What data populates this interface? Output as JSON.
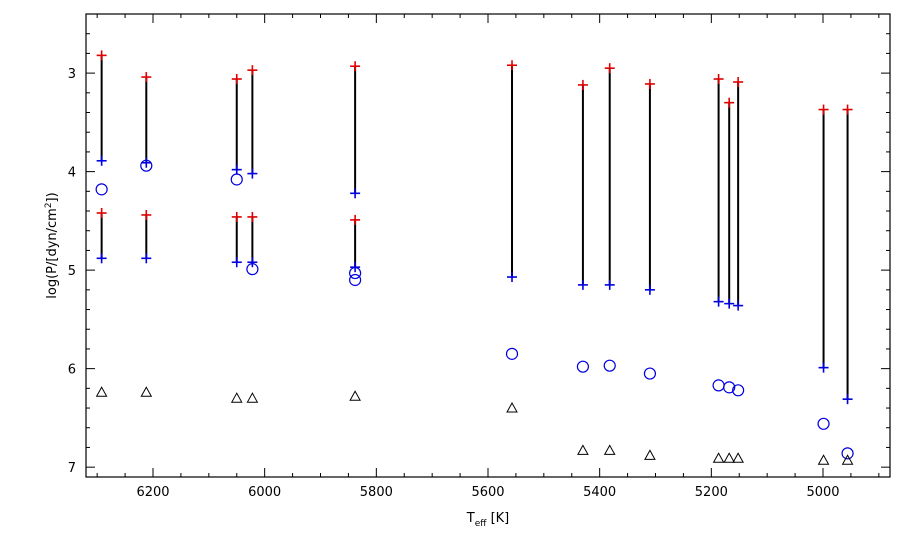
{
  "chart_data": {
    "type": "scatter",
    "xlabel_main": "T",
    "xlabel_sub": "eff",
    "xlabel_unit": " [K]",
    "ylabel_main": "log(P/[dyn/cm",
    "ylabel_sup": "2",
    "ylabel_end": "])",
    "xlim": [
      6320,
      4880
    ],
    "ylim": [
      2.4,
      7.1
    ],
    "y_inverted": true,
    "x_ticks": [
      6200,
      6000,
      5800,
      5600,
      5400,
      5200,
      5000
    ],
    "y_ticks": [
      3,
      4,
      5,
      6,
      7
    ],
    "x_minor_step": 50,
    "y_minor_step": 0.2,
    "grid": false,
    "colors": {
      "top_marker": "#e00000",
      "bottom_marker": "#0000e0",
      "circle": "#0000e0",
      "triangle": "#000000",
      "line": "#000000"
    },
    "segments": [
      {
        "x": 6292,
        "top": 2.82,
        "bottom": 3.89
      },
      {
        "x": 6292,
        "top": 4.42,
        "bottom": 4.88
      },
      {
        "x": 6212,
        "top": 3.04,
        "bottom": 3.91
      },
      {
        "x": 6212,
        "top": 4.44,
        "bottom": 4.88
      },
      {
        "x": 6050,
        "top": 3.06,
        "bottom": 3.98
      },
      {
        "x": 6050,
        "top": 4.46,
        "bottom": 4.92
      },
      {
        "x": 6022,
        "top": 2.97,
        "bottom": 4.02
      },
      {
        "x": 6022,
        "top": 4.46,
        "bottom": 4.92
      },
      {
        "x": 5838,
        "top": 2.93,
        "bottom": 4.22
      },
      {
        "x": 5838,
        "top": 4.49,
        "bottom": 4.97
      },
      {
        "x": 5557,
        "top": 2.92,
        "bottom": 5.07
      },
      {
        "x": 5430,
        "top": 3.12,
        "bottom": 5.15
      },
      {
        "x": 5382,
        "top": 2.95,
        "bottom": 5.15
      },
      {
        "x": 5310,
        "top": 3.11,
        "bottom": 5.2
      },
      {
        "x": 5187,
        "top": 3.06,
        "bottom": 5.32
      },
      {
        "x": 5168,
        "top": 3.3,
        "bottom": 5.34
      },
      {
        "x": 5152,
        "top": 3.09,
        "bottom": 5.36
      },
      {
        "x": 4999,
        "top": 3.37,
        "bottom": 5.99
      },
      {
        "x": 4956,
        "top": 3.37,
        "bottom": 6.31
      }
    ],
    "circles": [
      {
        "x": 6292,
        "y": 4.18
      },
      {
        "x": 6212,
        "y": 3.94
      },
      {
        "x": 6050,
        "y": 4.08
      },
      {
        "x": 6022,
        "y": 4.99
      },
      {
        "x": 5838,
        "y": 5.03
      },
      {
        "x": 5838,
        "y": 5.1
      },
      {
        "x": 5557,
        "y": 5.85
      },
      {
        "x": 5430,
        "y": 5.98
      },
      {
        "x": 5382,
        "y": 5.97
      },
      {
        "x": 5310,
        "y": 6.05
      },
      {
        "x": 5187,
        "y": 6.17
      },
      {
        "x": 5168,
        "y": 6.19
      },
      {
        "x": 5152,
        "y": 6.22
      },
      {
        "x": 4999,
        "y": 6.56
      },
      {
        "x": 4956,
        "y": 6.86
      }
    ],
    "triangles": [
      {
        "x": 6292,
        "y": 6.24
      },
      {
        "x": 6212,
        "y": 6.24
      },
      {
        "x": 6050,
        "y": 6.3
      },
      {
        "x": 6022,
        "y": 6.3
      },
      {
        "x": 5838,
        "y": 6.28
      },
      {
        "x": 5557,
        "y": 6.4
      },
      {
        "x": 5430,
        "y": 6.83
      },
      {
        "x": 5382,
        "y": 6.83
      },
      {
        "x": 5310,
        "y": 6.88
      },
      {
        "x": 5187,
        "y": 6.91
      },
      {
        "x": 5168,
        "y": 6.91
      },
      {
        "x": 5152,
        "y": 6.91
      },
      {
        "x": 4999,
        "y": 6.93
      },
      {
        "x": 4956,
        "y": 6.93
      }
    ]
  }
}
